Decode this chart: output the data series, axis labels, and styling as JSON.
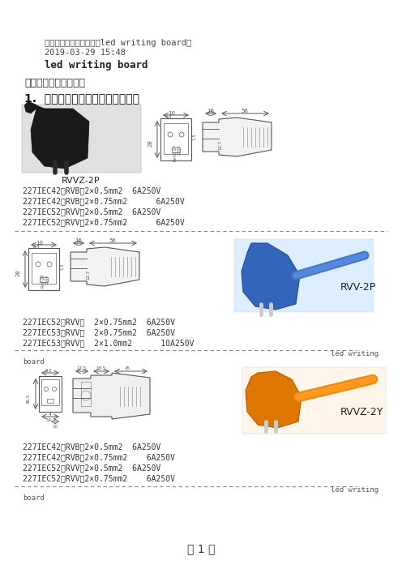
{
  "bg_color": "#ffffff",
  "header_line1": "世界各国电源插头标准（led writing board）",
  "header_line2": "2019-03-29 15:48",
  "header_line3": "led writing board",
  "subtitle": "世界各国电源插头标准",
  "section_title": "1.  中国电源线标准及所用插头规格",
  "section1_label": "RVVZ-2P",
  "section1_specs": [
    "227IEC42（RVB）2×0.5mm2  6A250V",
    "227IEC42（RVB）2×0.75mm2      6A250V",
    "227IEC52（RVV）2×0.5mm2  6A250V",
    "227IEC52（RVV）2×0.75mm2      6A250V"
  ],
  "section2_label": "RVV-2P",
  "section2_specs": [
    "227IEC52（RVV）  2×0.75mm2  6A250V",
    "227IEC53（RVV）  2×0.75mm2  6A250V",
    "227IEC53（RVV）  2×1.0mm2      10A250V"
  ],
  "section3_label": "RVVZ-2Y",
  "section3_specs": [
    "227IEC42（RVB）2×0.5mm2  6A250V",
    "227IEC42（RVB）2×0.75mm2    6A250V",
    "227IEC52（RVV）2×0.5mm2  6A250V",
    "227IEC52（RVV）2×0.75mm2    6A250V"
  ],
  "page_label": "第 1 页",
  "font_color": "#333333",
  "line_color": "#555555"
}
